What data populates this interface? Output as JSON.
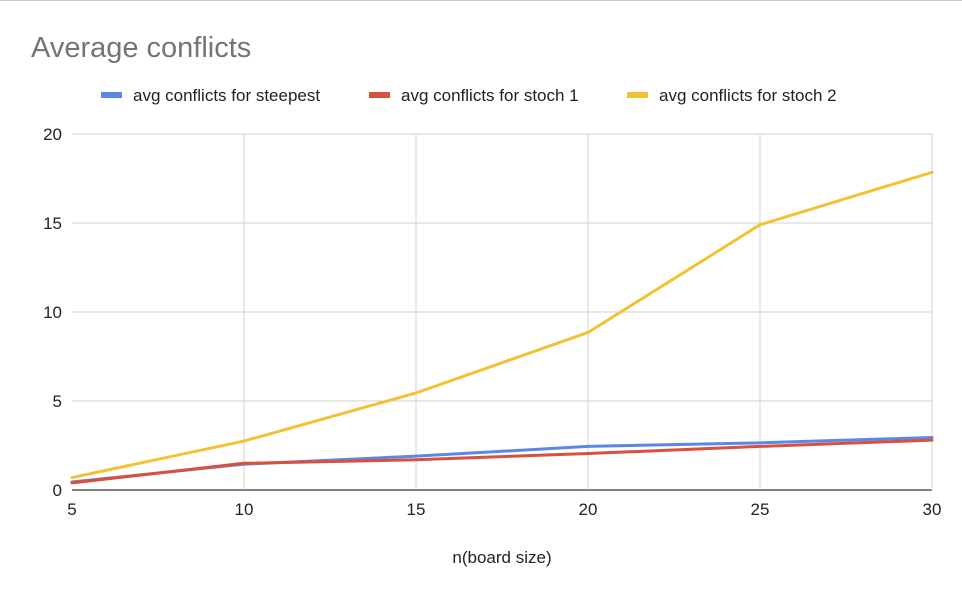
{
  "chart_data": {
    "type": "line",
    "title": "Average conflicts",
    "xlabel": "n(board size)",
    "ylabel": "",
    "x": [
      5,
      10,
      15,
      20,
      25,
      30
    ],
    "xlim": [
      5,
      30
    ],
    "ylim": [
      0,
      20
    ],
    "xticks": [
      "5",
      "10",
      "15",
      "20",
      "25",
      "30"
    ],
    "yticks": [
      "0",
      "5",
      "10",
      "15",
      "20"
    ],
    "grid": true,
    "legend_position": "top",
    "series": [
      {
        "name": "avg conflicts for steepest",
        "color": "#5b87e7",
        "values": [
          0.45,
          1.45,
          1.9,
          2.45,
          2.65,
          2.95
        ]
      },
      {
        "name": "avg conflicts for stoch 1",
        "color": "#db4f3e",
        "values": [
          0.4,
          1.5,
          1.7,
          2.05,
          2.45,
          2.8
        ]
      },
      {
        "name": "avg conflicts for stoch 2",
        "color": "#f1c233",
        "values": [
          0.7,
          2.75,
          5.45,
          8.85,
          14.9,
          17.85
        ]
      }
    ]
  }
}
